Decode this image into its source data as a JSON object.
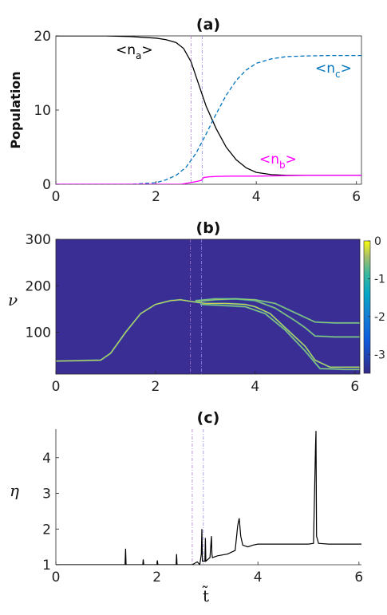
{
  "chart_data": [
    {
      "type": "line",
      "title": "(a)",
      "xlabel": "",
      "ylabel": "Population",
      "xlim": [
        0,
        6.1
      ],
      "ylim": [
        0,
        20
      ],
      "xticks": [
        0,
        2,
        4,
        6
      ],
      "yticks": [
        0,
        10,
        20
      ],
      "grid": false,
      "vlines": [
        2.7,
        2.92
      ],
      "annotations": [
        {
          "main": "<n",
          "sub": "a",
          "close": ">",
          "color": "#000000"
        },
        {
          "main": "<n",
          "sub": "c",
          "close": ">",
          "color": "#0072BD"
        },
        {
          "main": "<n",
          "sub": "b",
          "close": ">",
          "color": "#FF00FF"
        }
      ],
      "series": [
        {
          "color": "#000000",
          "style": "solid",
          "x": [
            0,
            1.0,
            1.5,
            2.0,
            2.2,
            2.4,
            2.55,
            2.7,
            2.85,
            3.0,
            3.2,
            3.4,
            3.6,
            3.8,
            4.0,
            4.3,
            4.6,
            5.0,
            5.5,
            6.1
          ],
          "y": [
            20,
            20,
            19.9,
            19.7,
            19.5,
            19.1,
            18.3,
            16.5,
            13.5,
            10.5,
            7.5,
            5.0,
            3.3,
            2.2,
            1.6,
            1.3,
            1.2,
            1.2,
            1.2,
            1.2
          ]
        },
        {
          "color": "#0072BD",
          "style": "dashed",
          "x": [
            0,
            1.5,
            2.0,
            2.2,
            2.4,
            2.6,
            2.8,
            3.0,
            3.2,
            3.4,
            3.6,
            3.8,
            4.0,
            4.3,
            4.6,
            5.0,
            5.5,
            6.1
          ],
          "y": [
            0,
            0,
            0.2,
            0.6,
            1.2,
            2.3,
            4.2,
            6.8,
            9.5,
            12.0,
            14.0,
            15.4,
            16.3,
            16.9,
            17.2,
            17.3,
            17.35,
            17.35
          ]
        },
        {
          "color": "#FF00FF",
          "style": "solid",
          "x": [
            0,
            2.5,
            2.75,
            2.9,
            2.95,
            3.05,
            3.2,
            3.5,
            4.0,
            4.5,
            5.0,
            5.5,
            6.1
          ],
          "y": [
            0,
            0,
            0.3,
            0.5,
            0.9,
            1.0,
            1.05,
            1.1,
            1.1,
            1.15,
            1.2,
            1.2,
            1.2
          ]
        }
      ]
    },
    {
      "type": "heatmap",
      "title": "(b)",
      "xlabel": "",
      "ylabel": "ν",
      "xlim": [
        0,
        6.1
      ],
      "ylim": [
        10,
        300
      ],
      "xticks": [
        0,
        2,
        4,
        6
      ],
      "yticks": [
        100,
        200,
        300
      ],
      "colorbar": {
        "min": -3.5,
        "max": 0,
        "ticks": [
          0,
          -1,
          -2,
          -3
        ]
      },
      "vlines": [
        2.7,
        2.92
      ],
      "ridges": [
        {
          "x": [
            0,
            0.9,
            1.1,
            1.4,
            1.7,
            2.0,
            2.3,
            2.5,
            2.8,
            3.0,
            3.4,
            3.8,
            4.0,
            4.3,
            4.6,
            5.0,
            5.2,
            5.5,
            6.1
          ],
          "y": [
            38,
            40,
            55,
            100,
            140,
            160,
            168,
            170,
            165,
            162,
            162,
            160,
            155,
            140,
            110,
            70,
            40,
            25,
            25
          ]
        },
        {
          "x": [
            2.8,
            3.2,
            3.6,
            4.0,
            4.4,
            4.8,
            5.0,
            5.2,
            5.6,
            6.1
          ],
          "y": [
            168,
            172,
            172,
            168,
            152,
            125,
            110,
            92,
            90,
            90
          ]
        },
        {
          "x": [
            2.8,
            3.2,
            3.6,
            4.0,
            4.4,
            4.8,
            5.2,
            5.6,
            6.1
          ],
          "y": [
            166,
            170,
            172,
            170,
            162,
            142,
            122,
            120,
            120
          ]
        },
        {
          "x": [
            2.9,
            3.3,
            3.8,
            4.2,
            4.6,
            5.0,
            5.3,
            5.8,
            6.1
          ],
          "y": [
            160,
            158,
            155,
            140,
            105,
            60,
            22,
            20,
            20
          ]
        }
      ]
    },
    {
      "type": "line",
      "title": "(c)",
      "xlabel": "t̃",
      "ylabel": "η",
      "xlim": [
        0,
        6.05
      ],
      "ylim": [
        1,
        4.8
      ],
      "xticks": [
        0,
        2,
        4,
        6
      ],
      "yticks": [
        1,
        2,
        3,
        4
      ],
      "vlines": [
        2.7,
        2.92
      ],
      "series": [
        {
          "color": "#000000",
          "style": "solid",
          "x": [
            0,
            1.37,
            1.38,
            1.39,
            1.72,
            1.73,
            1.74,
            2.0,
            2.01,
            2.02,
            2.38,
            2.39,
            2.4,
            2.7,
            2.8,
            2.85,
            2.88,
            2.89,
            2.9,
            2.95,
            2.96,
            2.97,
            3.05,
            3.08,
            3.09,
            3.1,
            3.2,
            3.4,
            3.55,
            3.6,
            3.63,
            3.66,
            3.7,
            3.8,
            3.9,
            4.0,
            4.5,
            5.0,
            5.1,
            5.14,
            5.15,
            5.16,
            5.2,
            5.4,
            6.05
          ],
          "y": [
            1.0,
            1.0,
            1.45,
            1.0,
            1.0,
            1.15,
            1.0,
            1.0,
            1.12,
            1.0,
            1.0,
            1.3,
            1.0,
            1.0,
            1.08,
            1.0,
            1.3,
            2.0,
            1.1,
            1.1,
            1.75,
            1.1,
            1.2,
            1.8,
            1.3,
            1.2,
            1.25,
            1.3,
            1.4,
            2.1,
            2.3,
            1.8,
            1.55,
            1.5,
            1.55,
            1.58,
            1.58,
            1.58,
            1.6,
            4.3,
            4.75,
            1.8,
            1.6,
            1.58,
            1.58
          ]
        }
      ]
    }
  ]
}
